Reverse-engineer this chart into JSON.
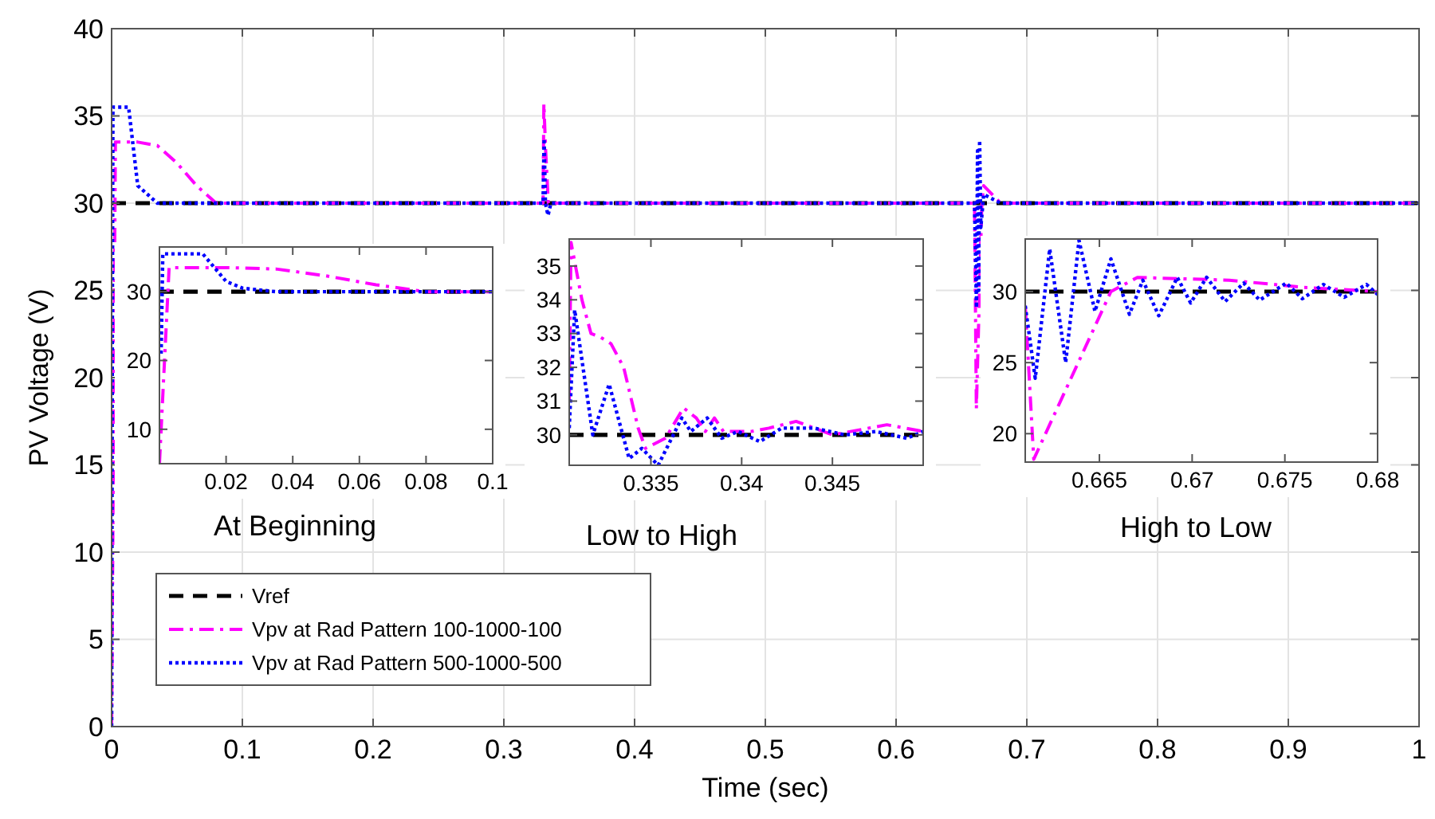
{
  "chart_data": [
    {
      "type": "line",
      "xlabel": "Time (sec)",
      "ylabel": "PV Voltage (V)",
      "xlim": [
        0,
        1
      ],
      "ylim": [
        0,
        40
      ],
      "xticks": [
        0,
        0.1,
        0.2,
        0.3,
        0.4,
        0.5,
        0.6,
        0.7,
        0.8,
        0.9,
        1
      ],
      "yticks": [
        0,
        5,
        10,
        15,
        20,
        25,
        30,
        35,
        40
      ],
      "grid": true,
      "legend": "bottom left",
      "marker": "none",
      "series": [
        {
          "name": "Vref",
          "color": "#000000",
          "line_style": "dashed",
          "x": [
            0,
            1
          ],
          "values": [
            30,
            30
          ]
        },
        {
          "name": "Vpv at Rad Pattern 100-1000-100",
          "color": "#ff00ff",
          "line_style": "dashdot",
          "x": [
            0,
            0.0029,
            0.02,
            0.035,
            0.05,
            0.065,
            0.08,
            0.33,
            0.3306,
            0.332,
            0.334,
            0.66,
            0.6614,
            0.6656,
            0.667,
            0.68,
            1
          ],
          "values": [
            0,
            33.5,
            33.5,
            33.3,
            32.3,
            31,
            30,
            30,
            35.7,
            33,
            30,
            30,
            18.2,
            30,
            31,
            30,
            30
          ]
        },
        {
          "name": "Vpv at Rad Pattern 500-1000-500",
          "color": "#0000ff",
          "line_style": "dotted",
          "x": [
            0,
            0.0005,
            0.001,
            0.013,
            0.02,
            0.035,
            0.33,
            0.3308,
            0.3318,
            0.3338,
            0.336,
            0.66,
            0.6615,
            0.6623,
            0.6632,
            0.6639,
            0.6648,
            0.667,
            0.68,
            1
          ],
          "values": [
            0,
            21,
            35.5,
            35.5,
            31,
            30,
            30,
            33.7,
            30,
            29.3,
            30,
            30,
            24,
            33,
            25,
            33.6,
            28.6,
            30.5,
            30,
            30
          ]
        }
      ]
    },
    {
      "type": "line",
      "xlabel": "At Beginning",
      "xlim": [
        0,
        0.1
      ],
      "ylim": [
        5,
        36.5
      ],
      "xticks": [
        0.02,
        0.04,
        0.06,
        0.08,
        0.1
      ],
      "yticks": [
        10,
        20,
        30
      ],
      "marker": "none",
      "series": [
        {
          "color": "#000000",
          "line_style": "dashed",
          "x": [
            0,
            0.1
          ],
          "values": [
            30,
            30
          ]
        },
        {
          "color": "#ff00ff",
          "line_style": "dashdot",
          "x": [
            0,
            0.0029,
            0.02,
            0.035,
            0.05,
            0.065,
            0.08,
            0.1
          ],
          "values": [
            5,
            33.5,
            33.5,
            33.3,
            32.3,
            31,
            30,
            30
          ]
        },
        {
          "color": "#0000ff",
          "line_style": "dotted",
          "x": [
            0.0005,
            0.001,
            0.013,
            0.02,
            0.025,
            0.035,
            0.1
          ],
          "values": [
            21,
            35.5,
            35.5,
            31.5,
            30.5,
            30,
            30
          ]
        }
      ]
    },
    {
      "type": "line",
      "xlabel": "Low to High",
      "xlim": [
        0.3305,
        0.35
      ],
      "ylim": [
        29.1,
        35.8
      ],
      "xticks": [
        0.335,
        0.34,
        0.345
      ],
      "yticks": [
        30,
        31,
        32,
        33,
        34,
        35
      ],
      "marker": "none",
      "series": [
        {
          "color": "#000000",
          "line_style": "dashed",
          "x": [
            0.3305,
            0.35
          ],
          "values": [
            30,
            30
          ]
        },
        {
          "color": "#ff00ff",
          "line_style": "dashdot",
          "x": [
            0.3305,
            0.3306,
            0.3312,
            0.3317,
            0.3322,
            0.3328,
            0.3335,
            0.3343,
            0.3347,
            0.3358,
            0.3368,
            0.3375,
            0.338,
            0.3385,
            0.339,
            0.3405,
            0.3415,
            0.343,
            0.345,
            0.348,
            0.35
          ],
          "values": [
            31,
            35.7,
            34,
            33,
            32.9,
            32.7,
            32,
            30.2,
            29.6,
            29.9,
            30.8,
            30.5,
            30.1,
            30.5,
            30.1,
            30.1,
            30.2,
            30.4,
            30,
            30.3,
            30.1
          ]
        },
        {
          "color": "#0000ff",
          "line_style": "dotted",
          "x": [
            0.3305,
            0.3308,
            0.3318,
            0.3327,
            0.3338,
            0.3345,
            0.3354,
            0.3367,
            0.3372,
            0.3381,
            0.3389,
            0.3398,
            0.341,
            0.3422,
            0.344,
            0.3457,
            0.3474,
            0.3491,
            0.35
          ],
          "values": [
            30.2,
            33.7,
            30,
            31.5,
            29.3,
            29.6,
            29.1,
            30.5,
            30.1,
            30.5,
            29.9,
            30.1,
            29.8,
            30.2,
            30.2,
            30,
            30.1,
            29.9,
            30.1
          ]
        }
      ]
    },
    {
      "type": "line",
      "xlabel": "High to Low",
      "xlim": [
        0.661,
        0.68
      ],
      "ylim": [
        18,
        33.7
      ],
      "xticks": [
        0.665,
        0.67,
        0.675,
        0.68
      ],
      "yticks": [
        20,
        25,
        30
      ],
      "marker": "none",
      "series": [
        {
          "color": "#000000",
          "line_style": "dashed",
          "x": [
            0.661,
            0.68
          ],
          "values": [
            30,
            30
          ]
        },
        {
          "color": "#ff00ff",
          "line_style": "dashdot",
          "x": [
            0.661,
            0.66146,
            0.66562,
            0.66705,
            0.672,
            0.676,
            0.68
          ],
          "values": [
            29,
            18.2,
            30,
            31,
            30.8,
            30.3,
            30
          ]
        },
        {
          "color": "#0000ff",
          "line_style": "dotted",
          "x": [
            0.661,
            0.66154,
            0.66232,
            0.66318,
            0.6639,
            0.66476,
            0.66562,
            0.66662,
            0.66734,
            0.6682,
            0.6692,
            0.66992,
            0.67078,
            0.67178,
            0.67278,
            0.67364,
            0.67508,
            0.67594,
            0.67708,
            0.6782,
            0.6794,
            0.68
          ],
          "values": [
            29,
            23.9,
            33,
            25,
            33.6,
            28.6,
            32.3,
            28.4,
            30.8,
            28.3,
            31,
            29.2,
            31,
            29.3,
            30.6,
            29.4,
            30.6,
            29.5,
            30.5,
            29.6,
            30.5,
            29.8
          ]
        }
      ]
    }
  ]
}
